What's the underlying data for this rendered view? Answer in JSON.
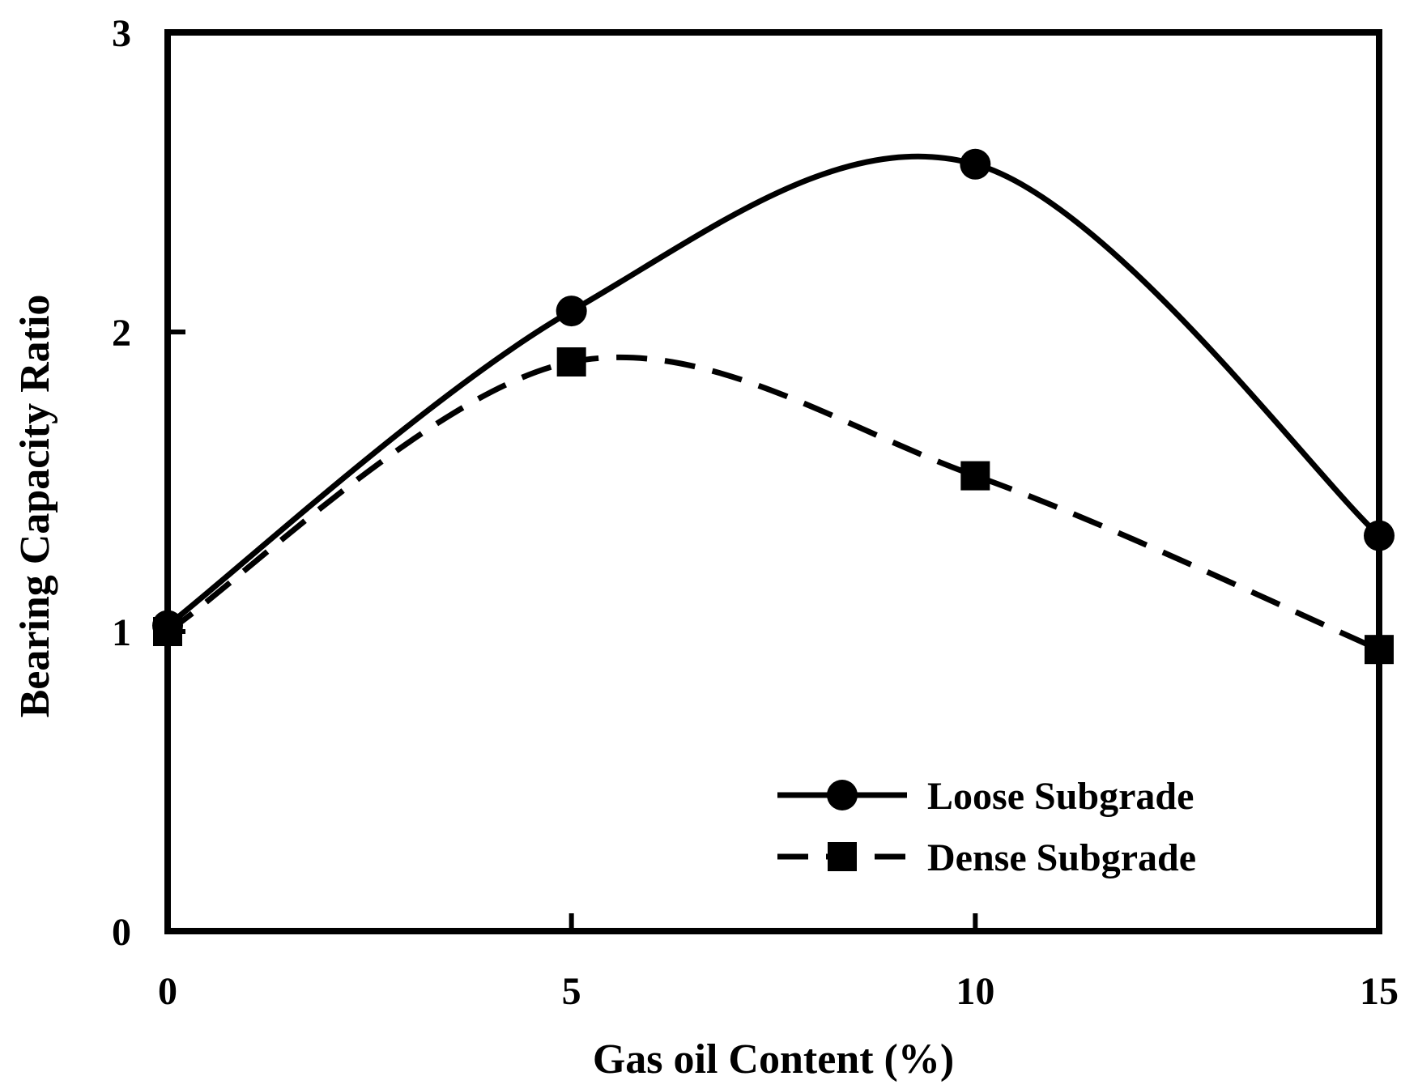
{
  "chart_data": {
    "type": "line",
    "title": "",
    "xlabel": "Gas  oil Content  (%)",
    "ylabel": "Bearing  Capacity  Ratio",
    "xlim": [
      0,
      15
    ],
    "ylim": [
      0,
      3
    ],
    "xticks": [
      0,
      5,
      10,
      15
    ],
    "yticks": [
      0,
      1,
      2,
      3
    ],
    "grid": false,
    "legend": "bottom-right",
    "smooth": true,
    "series": [
      {
        "name": "Loose Subgrade",
        "marker": "circle",
        "line_style": "solid",
        "color": "#000000",
        "x": [
          0,
          5,
          10,
          15
        ],
        "y": [
          1.02,
          2.07,
          2.56,
          1.32
        ]
      },
      {
        "name": "Dense Subgrade",
        "marker": "square",
        "line_style": "dashed",
        "color": "#000000",
        "x": [
          0,
          5,
          10,
          15
        ],
        "y": [
          1.0,
          1.9,
          1.52,
          0.94
        ]
      }
    ]
  }
}
